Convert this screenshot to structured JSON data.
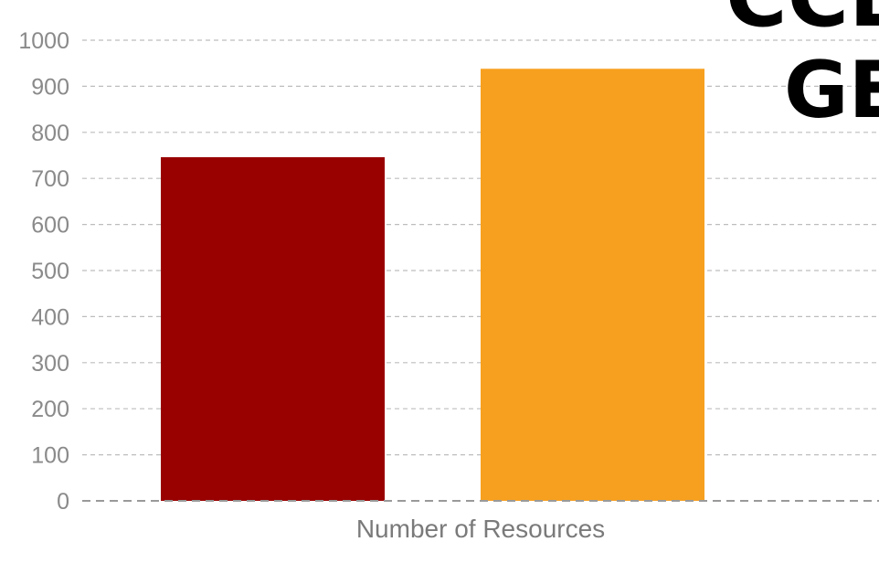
{
  "chart_data": {
    "type": "bar",
    "categories": [
      "Number of Resources"
    ],
    "series": [
      {
        "values": [
          746
        ],
        "color": "#990000"
      },
      {
        "values": [
          938
        ],
        "color": "#F7A01F"
      }
    ],
    "title": "",
    "xlabel": "",
    "ylabel": "",
    "ylim": [
      0,
      1000
    ],
    "yticks": [
      0,
      100,
      200,
      300,
      400,
      500,
      600,
      700,
      800,
      900,
      1000
    ],
    "grid": true,
    "grid_style": "dashed",
    "legend": "none"
  },
  "overlay": {
    "partial_title_lines": [
      "CCE",
      "GE"
    ]
  },
  "colors": {
    "tick_text": "#8a8a8a",
    "gridline": "#bdbdbd",
    "baseline": "#9a9a9a"
  }
}
